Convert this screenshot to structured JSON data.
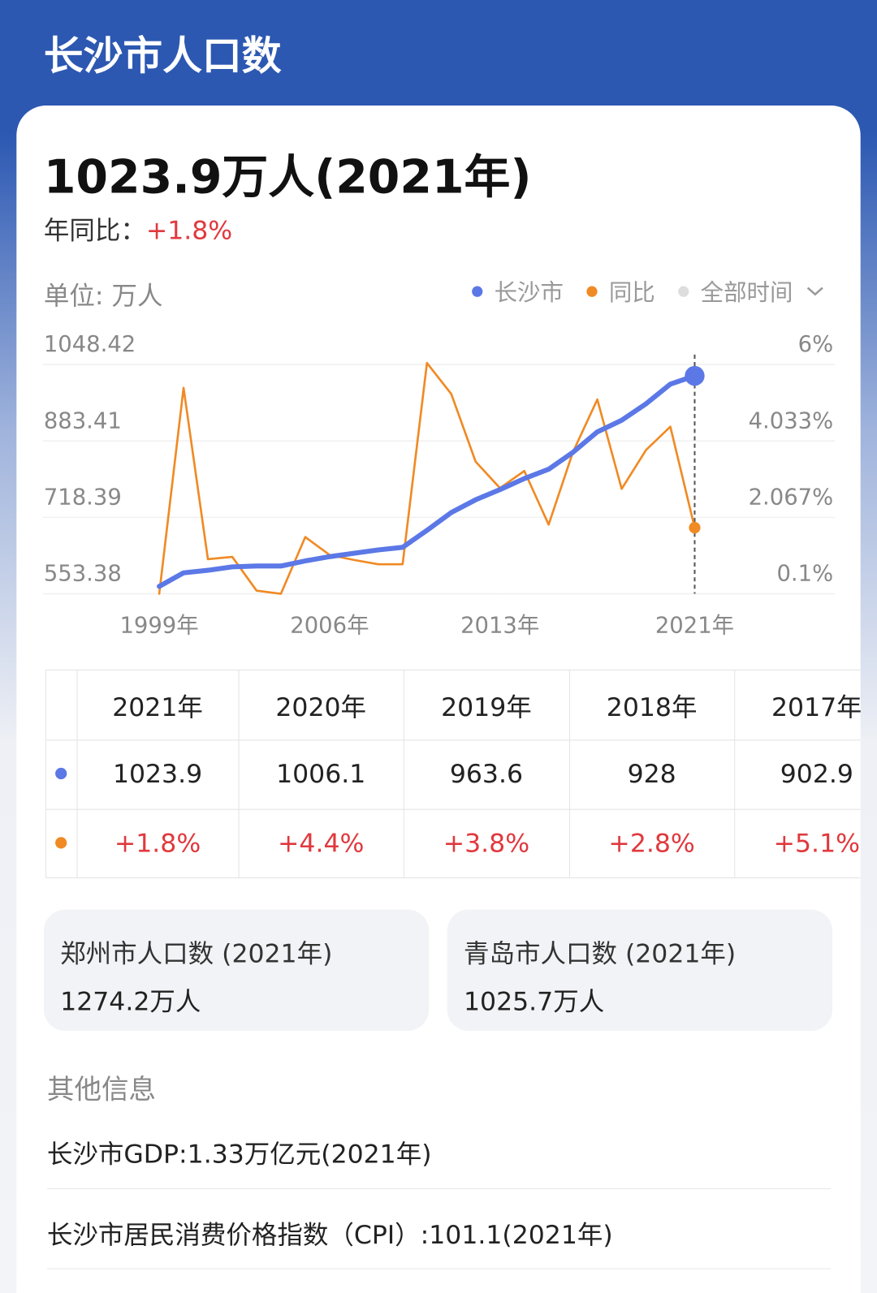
{
  "header": {
    "title": "长沙市人口数"
  },
  "summary": {
    "headline": "1023.9万人(2021年)",
    "yoy_label": "年同比：",
    "yoy_value": "+1.8%"
  },
  "unit": "单位: 万人",
  "filter": "全部时间",
  "chart_data": {
    "type": "line",
    "x": [
      1999,
      2000,
      2001,
      2002,
      2003,
      2004,
      2005,
      2006,
      2007,
      2008,
      2009,
      2010,
      2011,
      2012,
      2013,
      2014,
      2015,
      2016,
      2017,
      2018,
      2019,
      2020,
      2021
    ],
    "series": [
      {
        "name": "长沙市",
        "color": "#5b78e6",
        "axis": "y",
        "values": [
          569.3,
          598.6,
          604.1,
          611.5,
          613.3,
          613.3,
          624.3,
          633.5,
          640.8,
          648.1,
          653.6,
          690.3,
          728.8,
          756.3,
          778.3,
          802.1,
          822.3,
          858.9,
          902.9,
          928,
          963.6,
          1006.1,
          1023.9
        ]
      },
      {
        "name": "同比",
        "color": "#f08a24",
        "axis": "y2",
        "values": [
          0.1,
          5.4,
          0.99,
          1.05,
          0.18,
          0.1,
          1.56,
          1.1,
          0.97,
          0.86,
          0.86,
          6.04,
          5.24,
          3.5,
          2.82,
          3.26,
          1.88,
          3.75,
          5.1,
          2.8,
          3.8,
          4.4,
          1.8
        ]
      }
    ],
    "xlim": [
      1999,
      2021
    ],
    "xticks": [
      {
        "value": 1999,
        "label": "1999年"
      },
      {
        "value": 2006,
        "label": "2006年"
      },
      {
        "value": 2013,
        "label": "2013年"
      },
      {
        "value": 2021,
        "label": "2021年"
      }
    ],
    "ylim": [
      553.38,
      1048.42
    ],
    "yticks": [
      553.38,
      718.39,
      883.41,
      1048.42
    ],
    "y2lim": [
      0.1,
      6
    ],
    "y2ticks": [
      {
        "value": 0.1,
        "label": "0.1%"
      },
      {
        "value": 2.067,
        "label": "2.067%"
      },
      {
        "value": 4.033,
        "label": "4.033%"
      },
      {
        "value": 6,
        "label": "6%"
      }
    ],
    "grid": true
  },
  "table": {
    "columns": [
      "2021年",
      "2020年",
      "2019年",
      "2018年",
      "2017年"
    ],
    "rows": [
      [
        "1023.9",
        "1006.1",
        "963.6",
        "928",
        "902.9"
      ],
      [
        "+1.8%",
        "+4.4%",
        "+3.8%",
        "+2.8%",
        "+5.1%"
      ]
    ]
  },
  "related": [
    {
      "title": "郑州市人口数 (2021年)",
      "value": "1274.2万人"
    },
    {
      "title": "青岛市人口数 (2021年)",
      "value": "1025.7万人"
    }
  ],
  "other": {
    "title": "其他信息",
    "items": [
      "长沙市GDP:1.33万亿元(2021年)",
      "长沙市居民消费价格指数（CPI）:101.1(2021年)"
    ]
  }
}
